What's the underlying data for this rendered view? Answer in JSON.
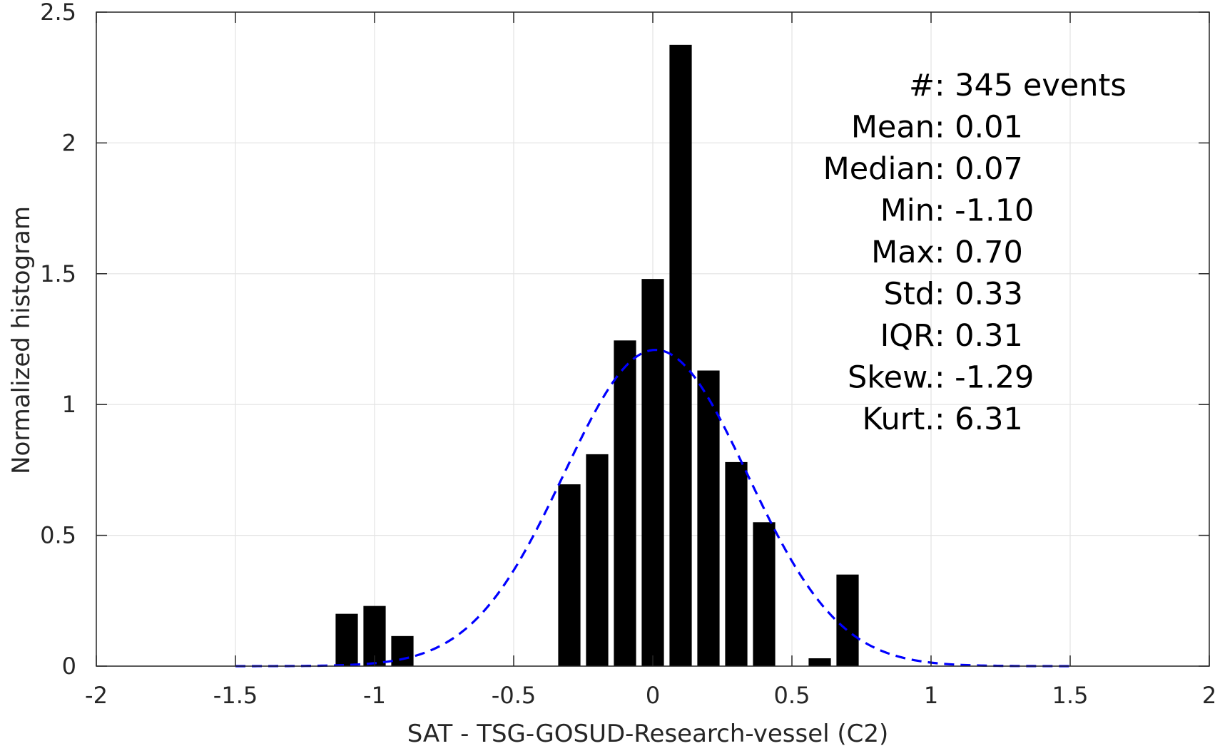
{
  "chart_data": {
    "type": "bar",
    "xlabel": "SAT - TSG-GOSUD-Research-vessel (C2)",
    "ylabel": "Normalized histogram",
    "xlim": [
      -2,
      2
    ],
    "ylim": [
      0,
      2.5
    ],
    "grid": true,
    "xticks": [
      -2,
      -1.5,
      -1,
      -0.5,
      0,
      0.5,
      1,
      1.5,
      2
    ],
    "xtick_labels": [
      "-2",
      "-1.5",
      "-1",
      "-0.5",
      "0",
      "0.5",
      "1",
      "1.5",
      "2"
    ],
    "yticks": [
      0,
      0.5,
      1,
      1.5,
      2,
      2.5
    ],
    "ytick_labels": [
      "0",
      "0.5",
      "1",
      "1.5",
      "2",
      "2.5"
    ],
    "bin_width": 0.1,
    "bar_color": "#000000",
    "bars": [
      {
        "x": -1.1,
        "value": 0.2
      },
      {
        "x": -1.0,
        "value": 0.23
      },
      {
        "x": -0.9,
        "value": 0.115
      },
      {
        "x": -0.3,
        "value": 0.695
      },
      {
        "x": -0.2,
        "value": 0.81
      },
      {
        "x": -0.1,
        "value": 1.245
      },
      {
        "x": 0.0,
        "value": 1.48
      },
      {
        "x": 0.1,
        "value": 2.375
      },
      {
        "x": 0.2,
        "value": 1.13
      },
      {
        "x": 0.3,
        "value": 0.78
      },
      {
        "x": 0.4,
        "value": 0.55
      },
      {
        "x": 0.6,
        "value": 0.03
      },
      {
        "x": 0.7,
        "value": 0.35
      }
    ],
    "fit_curve": {
      "type": "normal",
      "mean": 0.01,
      "std": 0.33,
      "x_range": [
        -1.5,
        1.5
      ],
      "color": "#0000ff",
      "style": "dashed"
    },
    "stats": [
      {
        "label": "#",
        "sep": " : ",
        "value": "345 events"
      },
      {
        "label": "Mean",
        "sep": " : ",
        "value": "0.01"
      },
      {
        "label": "Median",
        "sep": " : ",
        "value": "0.07"
      },
      {
        "label": "Min",
        "sep": " : ",
        "value": "-1.10"
      },
      {
        "label": "Max",
        "sep": " : ",
        "value": "0.70"
      },
      {
        "label": "Std",
        "sep": " : ",
        "value": "0.33"
      },
      {
        "label": "IQR",
        "sep": " : ",
        "value": "0.31"
      },
      {
        "label": "Skew.",
        "sep": " : ",
        "value": "-1.29"
      },
      {
        "label": "Kurt.",
        "sep": " : ",
        "value": "6.31"
      }
    ]
  }
}
